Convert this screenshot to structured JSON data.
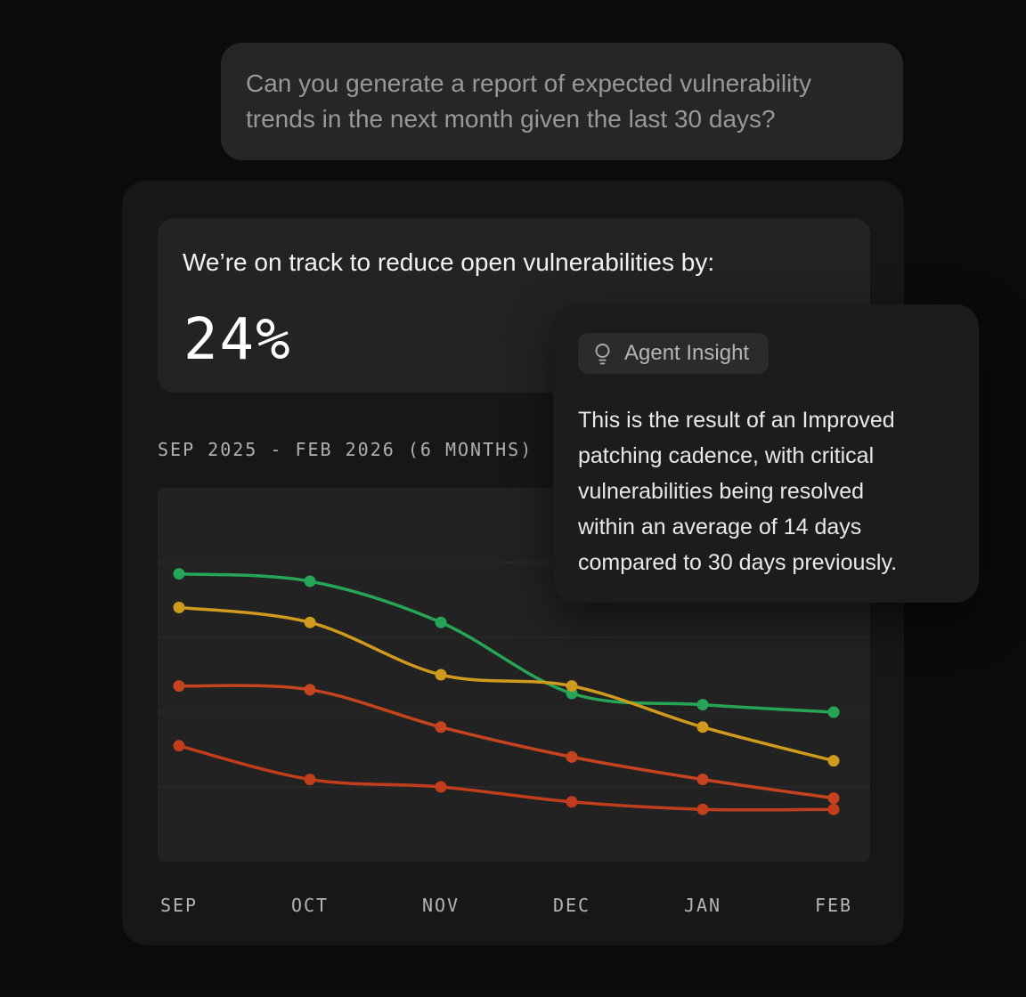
{
  "chat": {
    "user_message_lines": [
      "Can you generate a report of expected vulnerability",
      "trends in the next month given the last 30 days?"
    ]
  },
  "report": {
    "headline": "We’re on track to reduce open vulnerabilities by:",
    "metric_value": "24%",
    "date_range_label": "SEP 2025 - FEB 2026 (6 MONTHS)"
  },
  "insight": {
    "badge_label": "Agent Insight",
    "badge_icon": "lightbulb-icon",
    "body_lines": [
      "This is the result of an Improved",
      "patching cadence, with critical",
      "vulnerabilities being resolved",
      "within an average of 14 days",
      "compared to 30 days previously."
    ]
  },
  "chart_data": {
    "type": "line",
    "title": "",
    "xlabel": "",
    "ylabel": "",
    "categories": [
      "SEP",
      "OCT",
      "NOV",
      "DEC",
      "JAN",
      "FEB"
    ],
    "series": [
      {
        "name": "green",
        "color": "#27a556",
        "values": [
          77,
          75,
          64,
          45,
          42,
          40
        ]
      },
      {
        "name": "amber",
        "color": "#cf9a1d",
        "values": [
          68,
          64,
          50,
          47,
          36,
          27
        ]
      },
      {
        "name": "orange-red",
        "color": "#c5431e",
        "values": [
          47,
          46,
          36,
          28,
          22,
          17
        ]
      },
      {
        "name": "red",
        "color": "#c23d1b",
        "values": [
          31,
          22,
          20,
          16,
          14,
          14
        ]
      }
    ],
    "ylim": [
      0,
      100
    ],
    "gridlines": [
      20,
      40,
      60,
      80
    ],
    "grid": true,
    "legend": false,
    "smoothing": true,
    "gridline_color": "#2e2e2e"
  }
}
